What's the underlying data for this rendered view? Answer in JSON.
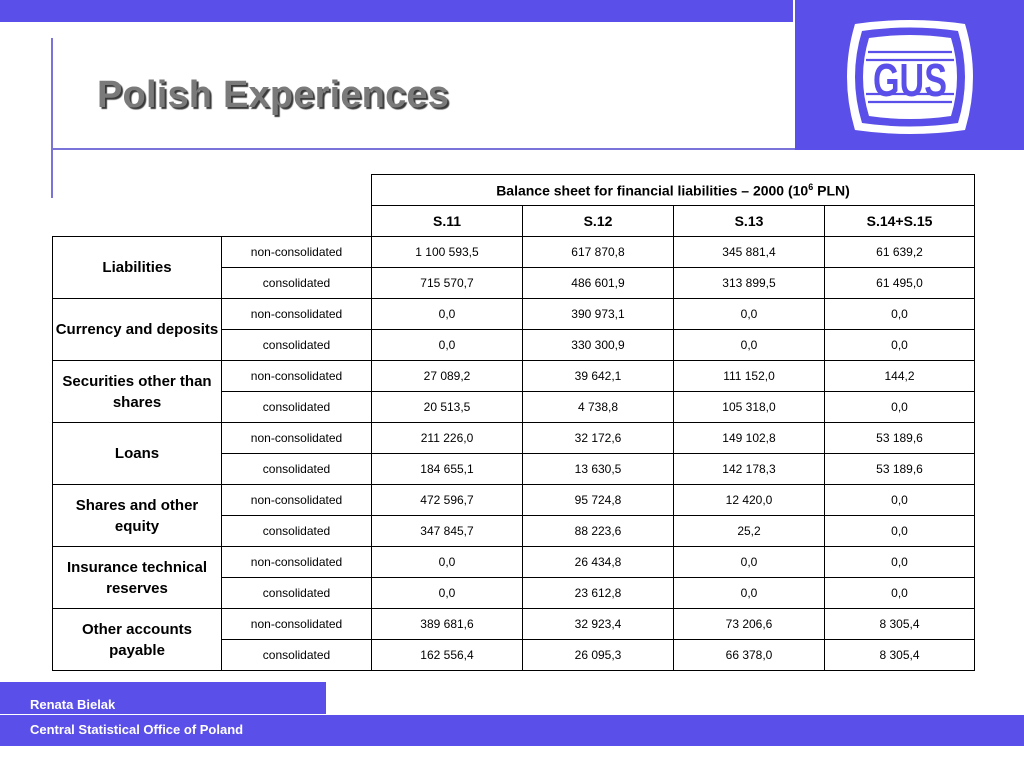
{
  "title": "Polish Experiences",
  "logo": {
    "text": "GUS"
  },
  "table": {
    "caption_prefix": "Balance sheet for financial liabilities – 2000 (10",
    "caption_sup": "6",
    "caption_suffix": " PLN)",
    "columns": [
      "S.11",
      "S.12",
      "S.13",
      "S.14+S.15"
    ],
    "groups": [
      {
        "label": "Liabilities",
        "rows": [
          {
            "kind": "non-consolidated",
            "values": [
              "1 100 593,5",
              "617 870,8",
              "345 881,4",
              "61 639,2"
            ]
          },
          {
            "kind": "consolidated",
            "values": [
              "715 570,7",
              "486 601,9",
              "313 899,5",
              "61 495,0"
            ]
          }
        ]
      },
      {
        "label": "Currency and deposits",
        "rows": [
          {
            "kind": "non-consolidated",
            "values": [
              "0,0",
              "390 973,1",
              "0,0",
              "0,0"
            ]
          },
          {
            "kind": "consolidated",
            "values": [
              "0,0",
              "330 300,9",
              "0,0",
              "0,0"
            ]
          }
        ]
      },
      {
        "label": "Securities other than shares",
        "rows": [
          {
            "kind": "non-consolidated",
            "values": [
              "27 089,2",
              "39 642,1",
              "111 152,0",
              "144,2"
            ]
          },
          {
            "kind": "consolidated",
            "values": [
              "20 513,5",
              "4 738,8",
              "105 318,0",
              "0,0"
            ]
          }
        ]
      },
      {
        "label": "Loans",
        "rows": [
          {
            "kind": "non-consolidated",
            "values": [
              "211 226,0",
              "32 172,6",
              "149 102,8",
              "53 189,6"
            ]
          },
          {
            "kind": "consolidated",
            "values": [
              "184 655,1",
              "13 630,5",
              "142 178,3",
              "53 189,6"
            ]
          }
        ]
      },
      {
        "label": "Shares and other equity",
        "rows": [
          {
            "kind": "non-consolidated",
            "values": [
              "472 596,7",
              "95 724,8",
              "12 420,0",
              "0,0"
            ]
          },
          {
            "kind": "consolidated",
            "values": [
              "347 845,7",
              "88 223,6",
              "25,2",
              "0,0"
            ]
          }
        ]
      },
      {
        "label": "Insurance technical reserves",
        "rows": [
          {
            "kind": "non-consolidated",
            "values": [
              "0,0",
              "26 434,8",
              "0,0",
              "0,0"
            ]
          },
          {
            "kind": "consolidated",
            "values": [
              "0,0",
              "23 612,8",
              "0,0",
              "0,0"
            ]
          }
        ]
      },
      {
        "label": "Other accounts payable",
        "rows": [
          {
            "kind": "non-consolidated",
            "values": [
              "389 681,6",
              "32 923,4",
              "73 206,6",
              "8 305,4"
            ]
          },
          {
            "kind": "consolidated",
            "values": [
              "162 556,4",
              "26 095,3",
              "66 378,0",
              "8 305,4"
            ]
          }
        ]
      }
    ]
  },
  "footer": {
    "author": "Renata Bielak",
    "organization": "Central Statistical Office of Poland"
  },
  "colors": {
    "accent": "#5a4fe8",
    "rule": "#7b74d8",
    "title": "#7a7a7a"
  }
}
